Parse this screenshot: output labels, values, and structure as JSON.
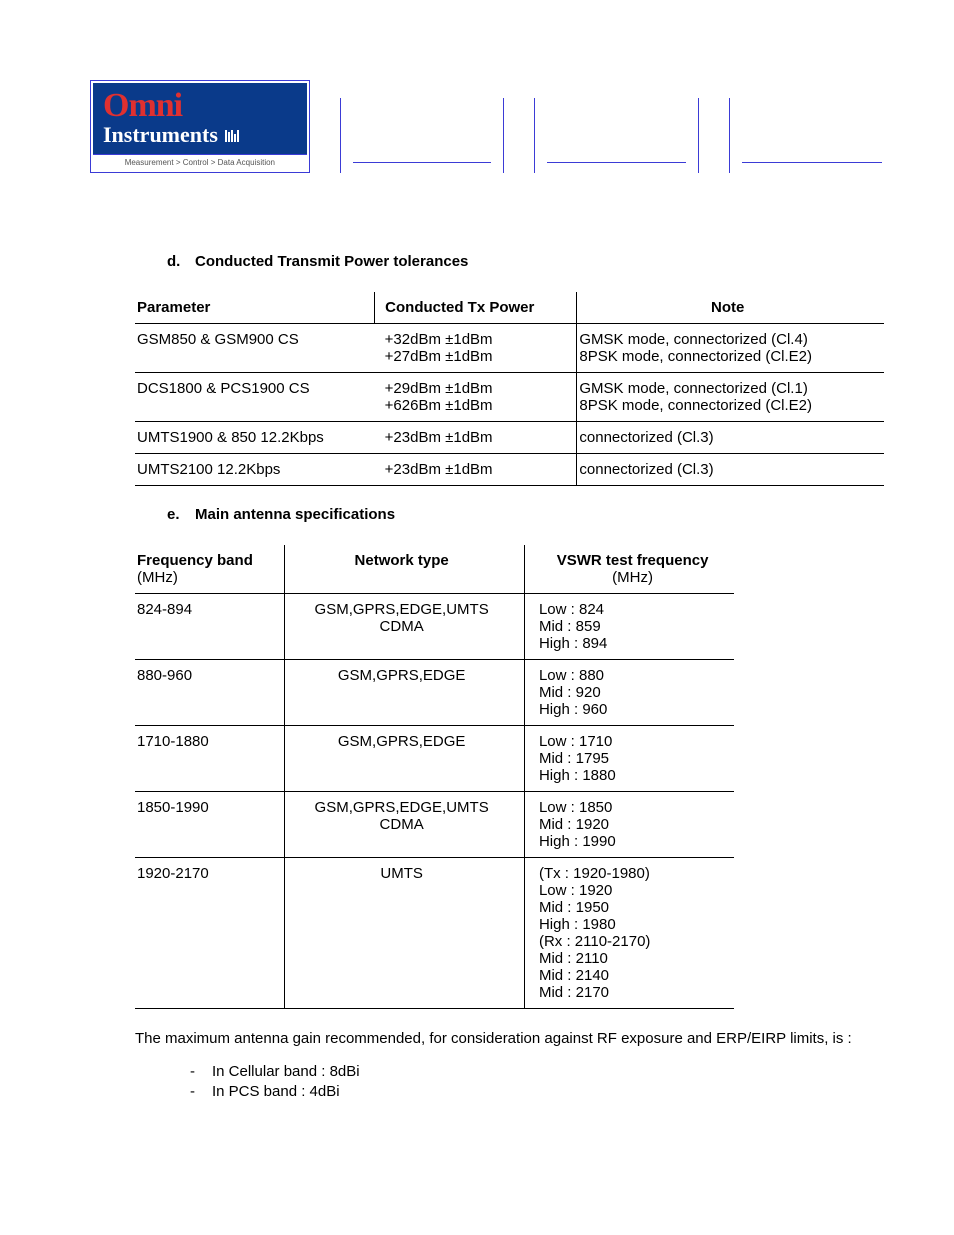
{
  "logo": {
    "top": "Omni",
    "bottom": "Instruments",
    "tag": "Measurement > Control > Data Acquisition"
  },
  "section_d": {
    "letter": "d.",
    "title": "Conducted Transmit Power tolerances",
    "headers": [
      "Parameter",
      "Conducted Tx Power",
      "Note"
    ],
    "rows": [
      {
        "p": "GSM850 & GSM900 CS",
        "tx": "+32dBm ±1dBm\n+27dBm ±1dBm",
        "note": "GMSK mode, connectorized (Cl.4)\n8PSK mode, connectorized (Cl.E2)"
      },
      {
        "p": "DCS1800 & PCS1900 CS",
        "tx": "+29dBm ±1dBm\n+626Bm ±1dBm",
        "note": "GMSK mode, connectorized (Cl.1)\n8PSK mode, connectorized (Cl.E2)"
      },
      {
        "p": "UMTS1900 & 850 12.2Kbps",
        "tx": "+23dBm ±1dBm",
        "note": "connectorized (Cl.3)"
      },
      {
        "p": "UMTS2100  12.2Kbps",
        "tx": "+23dBm ±1dBm",
        "note": "connectorized (Cl.3)"
      }
    ]
  },
  "section_e": {
    "letter": "e.",
    "title": "Main antenna specifications",
    "headers": {
      "h1": "Frequency band",
      "h1s": "(MHz)",
      "h2": "Network type",
      "h3": "VSWR test frequency",
      "h3s": "(MHz)"
    },
    "rows": [
      {
        "f": "824-894",
        "n": "GSM,GPRS,EDGE,UMTS\nCDMA",
        "v": "Low : 824\nMid :  859\nHigh : 894"
      },
      {
        "f": "880-960",
        "n": "GSM,GPRS,EDGE",
        "v": "Low : 880\nMid :  920\nHigh : 960"
      },
      {
        "f": "1710-1880",
        "n": "GSM,GPRS,EDGE",
        "v": "Low : 1710\nMid :  1795\nHigh : 1880"
      },
      {
        "f": "1850-1990",
        "n": "GSM,GPRS,EDGE,UMTS\nCDMA",
        "v": "Low : 1850\nMid :  1920\nHigh : 1990"
      },
      {
        "f": "1920-2170",
        "n": "UMTS",
        "v": "(Tx : 1920-1980)\nLow :  1920\nMid :  1950\nHigh : 1980\n(Rx : 2110-2170)\nMid :  2110\nMid :  2140\nMid :  2170"
      }
    ]
  },
  "para": "The maximum antenna gain recommended, for consideration against RF exposure and ERP/EIRP limits, is :",
  "bullets": [
    "In Cellular band : 8dBi",
    "In PCS band : 4dBi"
  ]
}
